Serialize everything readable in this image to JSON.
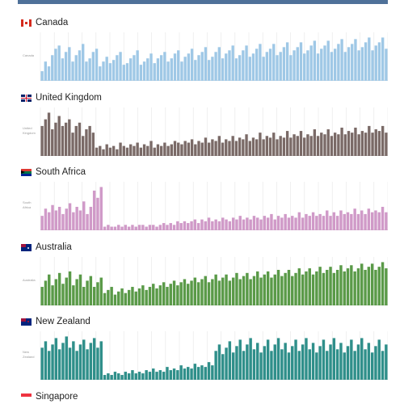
{
  "page": {
    "accent": "#4f7199"
  },
  "chart_data": [
    {
      "type": "bar",
      "title": "Canada",
      "ylabel": "Canada",
      "flag": "canada-flag",
      "color": "#9fc8e6",
      "values": [
        6,
        12,
        9,
        16,
        20,
        22,
        14,
        18,
        21,
        12,
        16,
        19,
        23,
        12,
        14,
        18,
        20,
        9,
        12,
        15,
        11,
        13,
        16,
        18,
        10,
        11,
        14,
        16,
        19,
        10,
        12,
        14,
        17,
        11,
        14,
        16,
        18,
        12,
        14,
        17,
        19,
        12,
        15,
        17,
        20,
        13,
        16,
        18,
        21,
        13,
        15,
        18,
        21,
        14,
        17,
        19,
        22,
        14,
        16,
        19,
        22,
        15,
        17,
        20,
        23,
        15,
        18,
        20,
        23,
        16,
        18,
        21,
        24,
        16,
        19,
        21,
        24,
        17,
        19,
        22,
        25,
        17,
        20,
        22,
        25,
        18,
        20,
        23,
        26,
        18,
        21,
        23,
        26,
        19,
        21,
        24,
        27,
        19,
        22,
        24,
        27,
        20
      ]
    },
    {
      "type": "bar",
      "title": "United Kingdom",
      "ylabel": "United Kingdom",
      "flag": "uk-flag",
      "color": "#7a6a67",
      "values": [
        18,
        22,
        26,
        16,
        20,
        24,
        18,
        20,
        22,
        14,
        18,
        20,
        12,
        16,
        18,
        14,
        5,
        6,
        4,
        7,
        5,
        6,
        4,
        8,
        6,
        5,
        7,
        6,
        8,
        5,
        7,
        6,
        9,
        5,
        7,
        6,
        8,
        6,
        7,
        9,
        8,
        7,
        9,
        8,
        10,
        7,
        9,
        8,
        11,
        8,
        10,
        9,
        12,
        8,
        10,
        9,
        12,
        9,
        11,
        10,
        13,
        9,
        11,
        10,
        14,
        10,
        12,
        11,
        14,
        10,
        12,
        11,
        15,
        11,
        13,
        12,
        15,
        11,
        13,
        12,
        16,
        12,
        14,
        13,
        16,
        12,
        14,
        13,
        17,
        13,
        15,
        14,
        17,
        13,
        15,
        14,
        18,
        14,
        16,
        15,
        18,
        14
      ]
    },
    {
      "type": "bar",
      "title": "South Africa",
      "ylabel": "South Africa",
      "flag": "south-africa-flag",
      "color": "#d09ac8",
      "values": [
        8,
        12,
        10,
        14,
        11,
        13,
        9,
        12,
        15,
        10,
        13,
        11,
        16,
        9,
        13,
        22,
        18,
        24,
        2,
        3,
        2,
        2,
        3,
        2,
        3,
        2,
        3,
        2,
        3,
        3,
        2,
        3,
        3,
        2,
        3,
        4,
        3,
        4,
        3,
        5,
        4,
        5,
        4,
        5,
        6,
        4,
        6,
        5,
        7,
        5,
        6,
        5,
        7,
        6,
        5,
        7,
        6,
        8,
        6,
        7,
        6,
        8,
        7,
        6,
        8,
        7,
        9,
        6,
        8,
        7,
        9,
        7,
        8,
        7,
        10,
        7,
        9,
        8,
        10,
        8,
        9,
        8,
        11,
        8,
        10,
        8,
        11,
        9,
        10,
        9,
        12,
        9,
        11,
        9,
        12,
        10,
        11,
        10,
        13,
        10
      ]
    },
    {
      "type": "bar",
      "title": "Australia",
      "ylabel": "Australia",
      "flag": "australia-flag",
      "color": "#5a9a48",
      "values": [
        12,
        16,
        20,
        13,
        17,
        21,
        14,
        18,
        22,
        13,
        17,
        20,
        12,
        16,
        19,
        12,
        15,
        18,
        8,
        10,
        12,
        7,
        9,
        11,
        8,
        10,
        12,
        9,
        11,
        13,
        10,
        12,
        14,
        11,
        13,
        15,
        12,
        14,
        16,
        13,
        15,
        17,
        14,
        16,
        18,
        15,
        17,
        19,
        15,
        17,
        20,
        16,
        18,
        20,
        16,
        18,
        21,
        17,
        19,
        21,
        17,
        19,
        22,
        18,
        20,
        22,
        18,
        20,
        23,
        19,
        21,
        23,
        19,
        21,
        24,
        20,
        22,
        24,
        20,
        22,
        25,
        21,
        23,
        25,
        21,
        23,
        26,
        22,
        24,
        26,
        22,
        24,
        27,
        23,
        25,
        27,
        23,
        25,
        28,
        24
      ]
    },
    {
      "type": "bar",
      "title": "New Zealand",
      "ylabel": "New Zealand",
      "flag": "new-zealand-flag",
      "color": "#2f8f8a",
      "values": [
        20,
        24,
        18,
        22,
        26,
        19,
        23,
        27,
        20,
        24,
        18,
        22,
        25,
        19,
        23,
        26,
        20,
        24,
        3,
        4,
        3,
        5,
        4,
        3,
        5,
        4,
        6,
        4,
        5,
        4,
        6,
        5,
        7,
        5,
        6,
        5,
        8,
        6,
        7,
        6,
        9,
        7,
        8,
        7,
        10,
        8,
        9,
        8,
        11,
        9,
        18,
        22,
        16,
        20,
        24,
        17,
        21,
        25,
        18,
        22,
        26,
        19,
        23,
        17,
        21,
        25,
        18,
        22,
        26,
        19,
        23,
        17,
        21,
        25,
        18,
        22,
        26,
        19,
        23,
        17,
        21,
        25,
        18,
        22,
        26,
        19,
        23,
        17,
        21,
        25,
        18,
        22,
        26,
        19,
        23,
        17,
        21,
        25,
        18,
        22
      ]
    },
    {
      "type": "bar",
      "title": "Singapore",
      "flag": "singapore-flag",
      "color": "#d63a3a",
      "values": []
    }
  ]
}
